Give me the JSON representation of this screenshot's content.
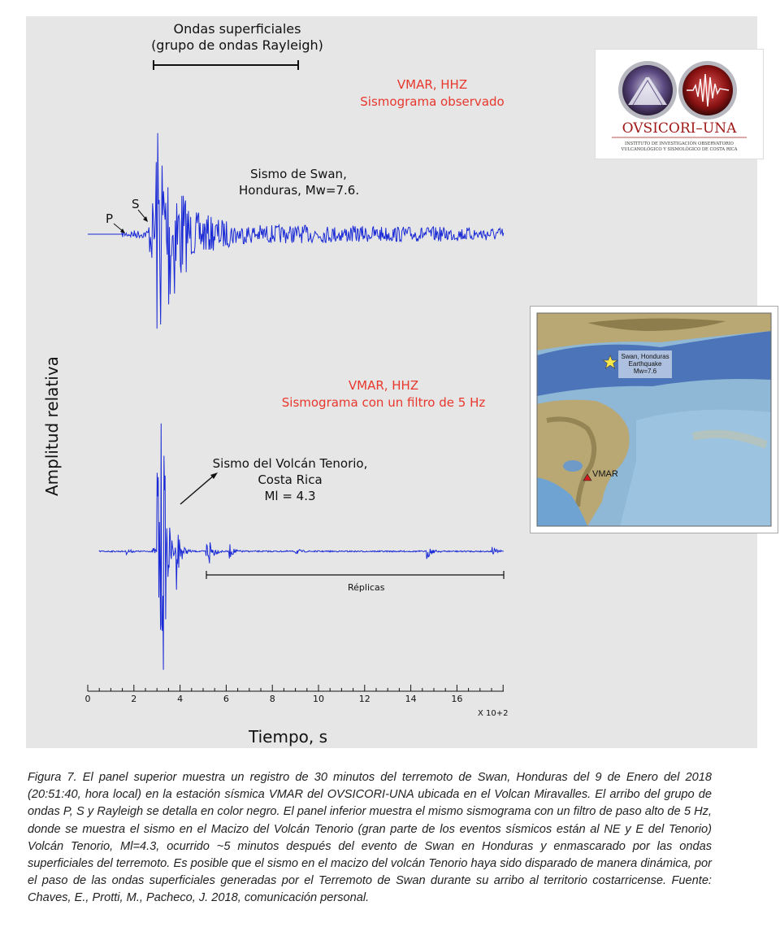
{
  "figure": {
    "rayleigh_label": [
      "Ondas superficiales",
      "(grupo de ondas Rayleigh)"
    ],
    "panel1_red": [
      "VMAR, HHZ",
      "Sismograma observado"
    ],
    "panel1_event": [
      "Sismo de Swan,",
      "Honduras, Mw=7.6."
    ],
    "phase_p": "P",
    "phase_s": "S",
    "panel2_red": [
      "VMAR, HHZ",
      "Sismograma con un filtro de 5 Hz"
    ],
    "panel2_event": [
      "Sismo del Volcán Tenorio,",
      "Costa Rica",
      "Ml = 4.3"
    ],
    "replicas_label": "Réplicas",
    "ylabel": "Amplitud relativa",
    "xlabel": "Tiempo, s",
    "x_ticks": [
      "0",
      "2",
      "4",
      "6",
      "8",
      "10",
      "12",
      "14",
      "16"
    ],
    "x_multiplier": "X 10+2",
    "colors": {
      "trace": "#1a2ad6",
      "red_text": "#e8372c",
      "panel_bg": "#e6e6e6"
    }
  },
  "logo": {
    "name": "OVSICORI–UNA",
    "subtitle": [
      "INSTITUTO DE INVESTIGACIÓN OBSERVATORIO",
      "VULCANOLÓGICO Y SISMOLÓGICO DE COSTA RICA"
    ]
  },
  "map": {
    "event_label": [
      "Swan, Honduras",
      "Earthquake",
      "Mw=7.6"
    ],
    "station_label": "VMAR"
  },
  "caption": "Figura 7. El panel superior muestra un registro de 30 minutos del terremoto de Swan, Honduras del 9 de Enero del 2018 (20:51:40, hora local) en la estación sísmica VMAR del OVSICORI-UNA ubicada en el Volcan Miravalles. El arribo del grupo de ondas P, S y Rayleigh se detalla en color negro. El panel inferior muestra el mismo sismograma con un filtro de paso alto de 5 Hz, donde se muestra el sismo en el  Macizo del Volcán Tenorio (gran parte de los eventos sísmicos están al NE y E del Tenorio) Volcán Tenorio, Ml=4.3, ocurrido ~5 minutos después del evento de Swan en Honduras y enmascarado por las ondas superficiales del terremoto. Es posible que el sismo en el macizo del volcán Tenorio haya sido disparado de manera dinámica, por el paso de las ondas superficiales generadas por el Terremoto de Swan durante su arribo al territorio costarricense. Fuente: Chaves, E., Protti, M., Pacheco, J.  2018, comunicación personal."
}
